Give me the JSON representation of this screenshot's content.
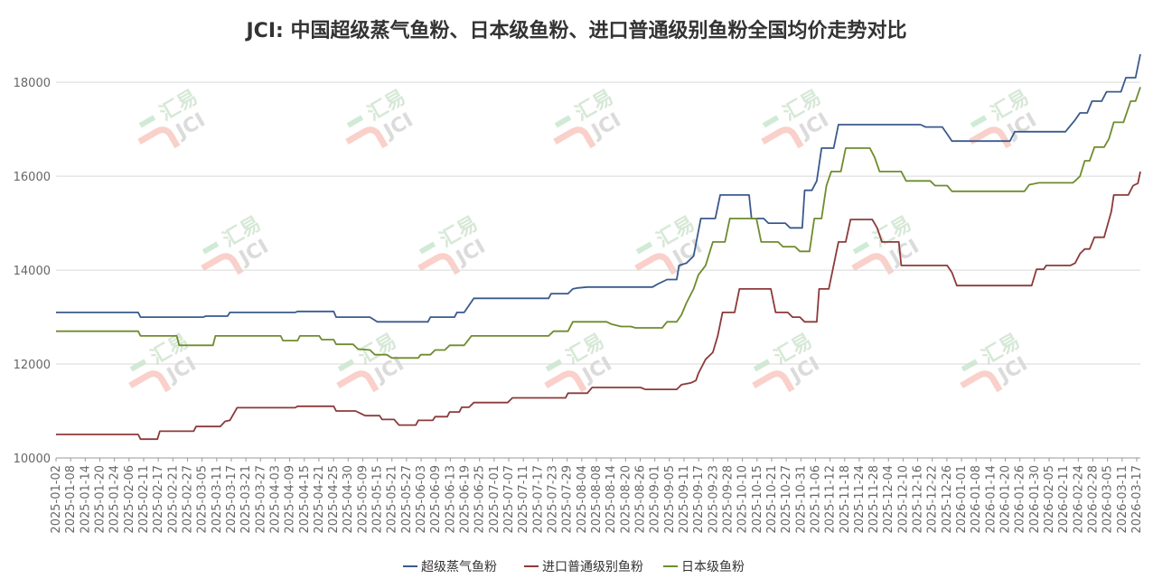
{
  "chart_data": {
    "type": "line",
    "title": "JCI: 中国超级蒸气鱼粉、日本级鱼粉、进口普通级别鱼粉全国均价走势对比",
    "watermark": {
      "brand": "汇易",
      "mark": "JCI"
    },
    "ylim": [
      10000,
      18600
    ],
    "yticks": [
      10000,
      12000,
      14000,
      16000,
      18000
    ],
    "grid": "horizontal",
    "legend_position": "bottom",
    "xlabels": [
      "2025-01-02",
      "2025-01-08",
      "2025-01-14",
      "2025-01-20",
      "2025-01-24",
      "2025-02-06",
      "2025-02-11",
      "2025-02-17",
      "2025-02-21",
      "2025-02-27",
      "2025-03-05",
      "2025-03-11",
      "2025-03-17",
      "2025-03-21",
      "2025-03-27",
      "2025-04-03",
      "2025-04-09",
      "2025-04-15",
      "2025-04-21",
      "2025-04-25",
      "2025-04-30",
      "2025-05-09",
      "2025-05-15",
      "2025-05-21",
      "2025-05-27",
      "2025-06-03",
      "2025-06-09",
      "2025-06-13",
      "2025-06-19",
      "2025-06-25",
      "2025-07-01",
      "2025-07-07",
      "2025-07-11",
      "2025-07-17",
      "2025-07-23",
      "2025-07-29",
      "2025-08-04",
      "2025-08-08",
      "2025-08-14",
      "2025-08-20",
      "2025-08-26",
      "2025-09-01",
      "2025-09-05",
      "2025-09-11",
      "2025-09-17",
      "2025-09-23",
      "2025-09-28",
      "2025-10-10",
      "2025-10-15",
      "2025-10-21",
      "2025-10-27",
      "2025-10-31",
      "2025-11-06",
      "2025-11-12",
      "2025-11-18",
      "2025-11-24",
      "2025-11-28",
      "2025-12-04",
      "2025-12-10",
      "2025-12-16",
      "2025-12-22",
      "2025-12-26",
      "2026-01-01",
      "2026-01-08",
      "2026-01-14",
      "2026-01-20",
      "2026-01-26",
      "2026-01-30",
      "2026-02-05",
      "2026-02-11",
      "2026-02-24",
      "2026-02-28",
      "2026-03-05",
      "2026-03-11",
      "2026-03-17"
    ],
    "series": [
      {
        "name": "超级蒸气鱼粉",
        "color": "#3a5a8c",
        "points": [
          [
            "2025-01-02",
            13100
          ],
          [
            "2025-02-05",
            13100
          ],
          [
            "2025-02-06",
            13000
          ],
          [
            "2025-03-04",
            13000
          ],
          [
            "2025-03-05",
            13020
          ],
          [
            "2025-03-14",
            13020
          ],
          [
            "2025-03-15",
            13100
          ],
          [
            "2025-04-11",
            13100
          ],
          [
            "2025-04-12",
            13120
          ],
          [
            "2025-04-27",
            13120
          ],
          [
            "2025-04-28",
            13000
          ],
          [
            "2025-05-12",
            13000
          ],
          [
            "2025-05-15",
            12900
          ],
          [
            "2025-06-05",
            12900
          ],
          [
            "2025-06-06",
            13000
          ],
          [
            "2025-06-16",
            13000
          ],
          [
            "2025-06-17",
            13100
          ],
          [
            "2025-06-20",
            13100
          ],
          [
            "2025-06-24",
            13400
          ],
          [
            "2025-07-25",
            13400
          ],
          [
            "2025-07-26",
            13500
          ],
          [
            "2025-08-02",
            13500
          ],
          [
            "2025-08-04",
            13600
          ],
          [
            "2025-08-06",
            13620
          ],
          [
            "2025-08-10",
            13640
          ],
          [
            "2025-09-06",
            13640
          ],
          [
            "2025-09-08",
            13700
          ],
          [
            "2025-09-12",
            13800
          ],
          [
            "2025-09-16",
            13800
          ],
          [
            "2025-09-17",
            14100
          ],
          [
            "2025-09-20",
            14150
          ],
          [
            "2025-09-23",
            14300
          ],
          [
            "2025-09-26",
            15100
          ],
          [
            "2025-10-02",
            15100
          ],
          [
            "2025-10-04",
            15600
          ],
          [
            "2025-10-16",
            15600
          ],
          [
            "2025-10-17",
            15100
          ],
          [
            "2025-10-22",
            15100
          ],
          [
            "2025-10-24",
            15000
          ],
          [
            "2025-10-31",
            15000
          ],
          [
            "2025-11-02",
            14900
          ],
          [
            "2025-11-07",
            14900
          ],
          [
            "2025-11-08",
            15700
          ],
          [
            "2025-11-11",
            15700
          ],
          [
            "2025-11-13",
            15900
          ],
          [
            "2025-11-15",
            16600
          ],
          [
            "2025-11-20",
            16600
          ],
          [
            "2025-11-22",
            17100
          ],
          [
            "2025-12-26",
            17100
          ],
          [
            "2025-12-28",
            17050
          ],
          [
            "2026-01-04",
            17050
          ],
          [
            "2026-01-06",
            16900
          ],
          [
            "2026-01-08",
            16750
          ],
          [
            "2026-02-01",
            16750
          ],
          [
            "2026-02-03",
            16950
          ],
          [
            "2026-02-24",
            16950
          ],
          [
            "2026-02-28",
            17200
          ],
          [
            "2026-03-02",
            17350
          ],
          [
            "2026-03-05",
            17350
          ],
          [
            "2026-03-07",
            17600
          ],
          [
            "2026-03-11",
            17600
          ],
          [
            "2026-03-13",
            17800
          ],
          [
            "2026-03-19",
            17800
          ],
          [
            "2026-03-21",
            18100
          ],
          [
            "2026-03-25",
            18100
          ],
          [
            "2026-03-27",
            18600
          ]
        ]
      },
      {
        "name": "进口普通级别鱼粉",
        "color": "#8c3a3a",
        "points": [
          [
            "2025-01-02",
            10500
          ],
          [
            "2025-02-05",
            10500
          ],
          [
            "2025-02-06",
            10400
          ],
          [
            "2025-02-13",
            10400
          ],
          [
            "2025-02-14",
            10570
          ],
          [
            "2025-02-28",
            10570
          ],
          [
            "2025-03-01",
            10670
          ],
          [
            "2025-03-11",
            10670
          ],
          [
            "2025-03-13",
            10780
          ],
          [
            "2025-03-15",
            10800
          ],
          [
            "2025-03-18",
            11070
          ],
          [
            "2025-04-11",
            11070
          ],
          [
            "2025-04-12",
            11100
          ],
          [
            "2025-04-27",
            11100
          ],
          [
            "2025-04-28",
            11000
          ],
          [
            "2025-05-06",
            11000
          ],
          [
            "2025-05-08",
            10950
          ],
          [
            "2025-05-10",
            10900
          ],
          [
            "2025-05-16",
            10900
          ],
          [
            "2025-05-17",
            10820
          ],
          [
            "2025-05-22",
            10820
          ],
          [
            "2025-05-24",
            10700
          ],
          [
            "2025-05-31",
            10700
          ],
          [
            "2025-06-01",
            10800
          ],
          [
            "2025-06-07",
            10800
          ],
          [
            "2025-06-08",
            10880
          ],
          [
            "2025-06-13",
            10880
          ],
          [
            "2025-06-14",
            10980
          ],
          [
            "2025-06-18",
            10980
          ],
          [
            "2025-06-19",
            11080
          ],
          [
            "2025-06-22",
            11080
          ],
          [
            "2025-06-24",
            11180
          ],
          [
            "2025-07-08",
            11180
          ],
          [
            "2025-07-10",
            11280
          ],
          [
            "2025-08-01",
            11280
          ],
          [
            "2025-08-02",
            11380
          ],
          [
            "2025-08-10",
            11380
          ],
          [
            "2025-08-12",
            11500
          ],
          [
            "2025-09-01",
            11500
          ],
          [
            "2025-09-03",
            11460
          ],
          [
            "2025-09-16",
            11460
          ],
          [
            "2025-09-18",
            11560
          ],
          [
            "2025-09-22",
            11600
          ],
          [
            "2025-09-24",
            11650
          ],
          [
            "2025-09-25",
            11800
          ],
          [
            "2025-09-28",
            12100
          ],
          [
            "2025-10-01",
            12250
          ],
          [
            "2025-10-03",
            12600
          ],
          [
            "2025-10-05",
            13100
          ],
          [
            "2025-10-10",
            13100
          ],
          [
            "2025-10-12",
            13600
          ],
          [
            "2025-10-25",
            13600
          ],
          [
            "2025-10-27",
            13100
          ],
          [
            "2025-11-01",
            13100
          ],
          [
            "2025-11-03",
            13000
          ],
          [
            "2025-11-06",
            13000
          ],
          [
            "2025-11-08",
            12900
          ],
          [
            "2025-11-13",
            12900
          ],
          [
            "2025-11-14",
            13600
          ],
          [
            "2025-11-18",
            13600
          ],
          [
            "2025-11-22",
            14600
          ],
          [
            "2025-11-25",
            14600
          ],
          [
            "2025-11-27",
            15080
          ],
          [
            "2025-12-06",
            15080
          ],
          [
            "2025-12-08",
            14900
          ],
          [
            "2025-12-10",
            14600
          ],
          [
            "2025-12-17",
            14600
          ],
          [
            "2025-12-18",
            14100
          ],
          [
            "2026-01-06",
            14100
          ],
          [
            "2026-01-08",
            13950
          ],
          [
            "2026-01-10",
            13670
          ],
          [
            "2026-01-24",
            13670
          ],
          [
            "2026-02-10",
            13670
          ],
          [
            "2026-02-12",
            14020
          ],
          [
            "2026-02-15",
            14020
          ],
          [
            "2026-02-16",
            14100
          ],
          [
            "2026-02-26",
            14100
          ],
          [
            "2026-02-28",
            14150
          ],
          [
            "2026-03-02",
            14350
          ],
          [
            "2026-03-04",
            14450
          ],
          [
            "2026-03-06",
            14450
          ],
          [
            "2026-03-08",
            14700
          ],
          [
            "2026-03-12",
            14700
          ],
          [
            "2026-03-15",
            15250
          ],
          [
            "2026-03-16",
            15600
          ],
          [
            "2026-03-22",
            15600
          ],
          [
            "2026-03-24",
            15800
          ],
          [
            "2026-03-26",
            15850
          ],
          [
            "2026-03-27",
            16100
          ]
        ]
      },
      {
        "name": "日本级鱼粉",
        "color": "#6e8c2e",
        "points": [
          [
            "2025-01-02",
            12700
          ],
          [
            "2025-02-05",
            12700
          ],
          [
            "2025-02-06",
            12600
          ],
          [
            "2025-02-21",
            12600
          ],
          [
            "2025-02-22",
            12400
          ],
          [
            "2025-03-08",
            12400
          ],
          [
            "2025-03-09",
            12600
          ],
          [
            "2025-04-05",
            12600
          ],
          [
            "2025-04-06",
            12500
          ],
          [
            "2025-04-12",
            12500
          ],
          [
            "2025-04-13",
            12600
          ],
          [
            "2025-04-21",
            12600
          ],
          [
            "2025-04-22",
            12520
          ],
          [
            "2025-04-27",
            12520
          ],
          [
            "2025-04-28",
            12420
          ],
          [
            "2025-05-05",
            12420
          ],
          [
            "2025-05-07",
            12320
          ],
          [
            "2025-05-12",
            12300
          ],
          [
            "2025-05-14",
            12200
          ],
          [
            "2025-05-19",
            12200
          ],
          [
            "2025-05-21",
            12130
          ],
          [
            "2025-06-01",
            12130
          ],
          [
            "2025-06-02",
            12200
          ],
          [
            "2025-06-06",
            12200
          ],
          [
            "2025-06-08",
            12300
          ],
          [
            "2025-06-12",
            12300
          ],
          [
            "2025-06-14",
            12400
          ],
          [
            "2025-06-20",
            12400
          ],
          [
            "2025-06-23",
            12600
          ],
          [
            "2025-07-25",
            12600
          ],
          [
            "2025-07-27",
            12700
          ],
          [
            "2025-08-02",
            12700
          ],
          [
            "2025-08-04",
            12900
          ],
          [
            "2025-08-18",
            12900
          ],
          [
            "2025-08-20",
            12850
          ],
          [
            "2025-08-24",
            12800
          ],
          [
            "2025-08-28",
            12800
          ],
          [
            "2025-08-30",
            12770
          ],
          [
            "2025-09-10",
            12770
          ],
          [
            "2025-09-12",
            12900
          ],
          [
            "2025-09-16",
            12900
          ],
          [
            "2025-09-18",
            13050
          ],
          [
            "2025-09-20",
            13300
          ],
          [
            "2025-09-23",
            13600
          ],
          [
            "2025-09-25",
            13900
          ],
          [
            "2025-09-28",
            14100
          ],
          [
            "2025-10-01",
            14600
          ],
          [
            "2025-10-06",
            14600
          ],
          [
            "2025-10-08",
            15100
          ],
          [
            "2025-10-19",
            15100
          ],
          [
            "2025-10-21",
            14600
          ],
          [
            "2025-10-28",
            14600
          ],
          [
            "2025-10-30",
            14500
          ],
          [
            "2025-11-04",
            14500
          ],
          [
            "2025-11-06",
            14400
          ],
          [
            "2025-11-10",
            14400
          ],
          [
            "2025-11-12",
            15100
          ],
          [
            "2025-11-15",
            15100
          ],
          [
            "2025-11-17",
            15800
          ],
          [
            "2025-11-19",
            16100
          ],
          [
            "2025-11-23",
            16100
          ],
          [
            "2025-11-25",
            16600
          ],
          [
            "2025-12-05",
            16600
          ],
          [
            "2025-12-07",
            16400
          ],
          [
            "2025-12-09",
            16100
          ],
          [
            "2025-12-18",
            16100
          ],
          [
            "2025-12-20",
            15900
          ],
          [
            "2025-12-30",
            15900
          ],
          [
            "2026-01-01",
            15800
          ],
          [
            "2026-01-06",
            15800
          ],
          [
            "2026-01-08",
            15680
          ],
          [
            "2026-02-07",
            15680
          ],
          [
            "2026-02-09",
            15820
          ],
          [
            "2026-02-13",
            15860
          ],
          [
            "2026-02-27",
            15860
          ],
          [
            "2026-02-28",
            15900
          ],
          [
            "2026-03-02",
            16000
          ],
          [
            "2026-03-04",
            16330
          ],
          [
            "2026-03-06",
            16330
          ],
          [
            "2026-03-08",
            16620
          ],
          [
            "2026-03-12",
            16620
          ],
          [
            "2026-03-14",
            16800
          ],
          [
            "2026-03-16",
            17150
          ],
          [
            "2026-03-20",
            17150
          ],
          [
            "2026-03-23",
            17600
          ],
          [
            "2026-03-25",
            17600
          ],
          [
            "2026-03-27",
            17900
          ]
        ]
      }
    ]
  }
}
